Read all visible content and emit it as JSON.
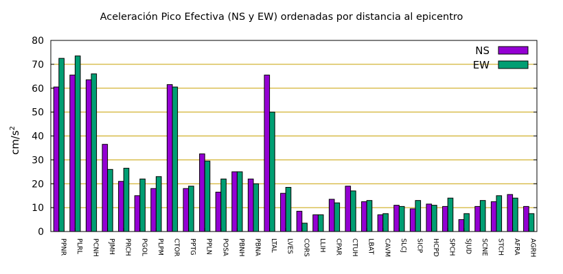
{
  "chart_data": {
    "type": "bar",
    "title": "Aceleración Pico Efectiva (NS y EW) ordenadas por distancia al epicentro",
    "xlabel": "",
    "ylabel": "cm/s",
    "ylabel_sup": "2",
    "ylim": [
      0,
      80
    ],
    "yticks": [
      0,
      10,
      20,
      30,
      40,
      50,
      60,
      70,
      80
    ],
    "grid": "horizontal",
    "legend_position": "top-right",
    "categories": [
      "PPNR",
      "PLRL",
      "PCNH",
      "PJMH",
      "PRCH",
      "PGOL",
      "PLPM",
      "CTOR",
      "PPTG",
      "PPLN",
      "POSA",
      "PBNH",
      "PBNA",
      "LTAL",
      "LVES",
      "CORS",
      "LLIH",
      "CPAR",
      "CTUH",
      "LBAT",
      "CAVM",
      "SLCJ",
      "SICP",
      "HCPD",
      "SPCH",
      "SJUD",
      "SCNE",
      "STCH",
      "AFRA",
      "AGRH"
    ],
    "series": [
      {
        "name": "NS",
        "color": "#9400d3",
        "values": [
          60.5,
          65.5,
          63.5,
          36.5,
          21,
          15,
          18,
          61.5,
          18,
          32.5,
          16.5,
          25,
          22,
          65.5,
          16,
          8.5,
          7,
          13.5,
          19,
          12.5,
          7,
          11,
          9.5,
          11.5,
          10.5,
          5,
          10.5,
          12.5,
          15.5,
          10.5
        ]
      },
      {
        "name": "EW",
        "color": "#009e73",
        "values": [
          72.5,
          73.5,
          66,
          26,
          26.5,
          22,
          23,
          60.5,
          19,
          29.5,
          22,
          25,
          20,
          50,
          18.5,
          3.5,
          7,
          12,
          17,
          13,
          7.5,
          10.5,
          13,
          11,
          14,
          7.5,
          13,
          15,
          14,
          7.5
        ]
      }
    ]
  }
}
